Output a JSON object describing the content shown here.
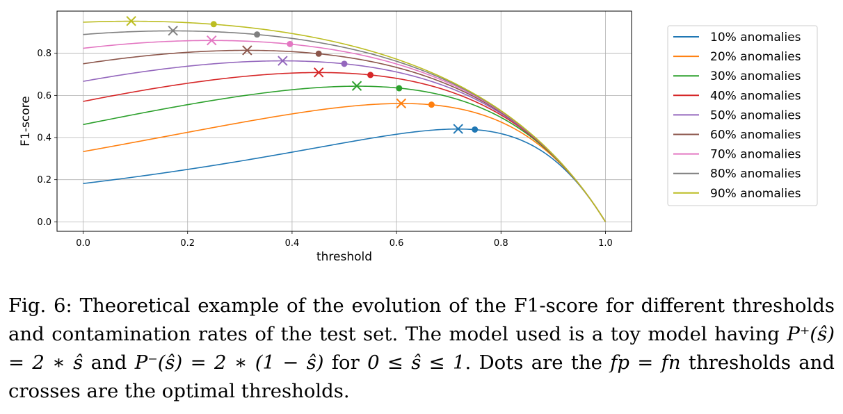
{
  "chart_data": {
    "type": "line",
    "xlabel": "threshold",
    "ylabel": "F1-score",
    "xlim": [
      -0.05,
      1.05
    ],
    "ylim": [
      -0.045,
      1.0
    ],
    "xticks": [
      "0.0",
      "0.2",
      "0.4",
      "0.6",
      "0.8",
      "1.0"
    ],
    "yticks": [
      "0.0",
      "0.2",
      "0.4",
      "0.6",
      "0.8"
    ],
    "xtick_values": [
      0,
      0.2,
      0.4,
      0.6,
      0.8,
      1.0
    ],
    "ytick_values": [
      0,
      0.2,
      0.4,
      0.6,
      0.8
    ],
    "grid": true,
    "legend_position": "outside-right",
    "series": [
      {
        "name": "10% anomalies",
        "color": "#1f77b4",
        "contamination": 0.1,
        "dot": {
          "x": 0.75,
          "y": 0.438
        },
        "cross": {
          "x": 0.718,
          "y": 0.441
        }
      },
      {
        "name": "20% anomalies",
        "color": "#ff7f0e",
        "contamination": 0.2,
        "dot": {
          "x": 0.667,
          "y": 0.556
        },
        "cross": {
          "x": 0.609,
          "y": 0.562
        }
      },
      {
        "name": "30% anomalies",
        "color": "#2ca02c",
        "contamination": 0.3,
        "dot": {
          "x": 0.605,
          "y": 0.634
        },
        "cross": {
          "x": 0.524,
          "y": 0.645
        }
      },
      {
        "name": "40% anomalies",
        "color": "#d62728",
        "contamination": 0.4,
        "dot": {
          "x": 0.55,
          "y": 0.697
        },
        "cross": {
          "x": 0.451,
          "y": 0.709
        }
      },
      {
        "name": "50% anomalies",
        "color": "#9467bd",
        "contamination": 0.5,
        "dot": {
          "x": 0.5,
          "y": 0.75
        },
        "cross": {
          "x": 0.382,
          "y": 0.764
        }
      },
      {
        "name": "60% anomalies",
        "color": "#8c564b",
        "contamination": 0.6,
        "dot": {
          "x": 0.451,
          "y": 0.798
        },
        "cross": {
          "x": 0.314,
          "y": 0.814
        }
      },
      {
        "name": "70% anomalies",
        "color": "#e377c2",
        "contamination": 0.7,
        "dot": {
          "x": 0.396,
          "y": 0.844
        },
        "cross": {
          "x": 0.246,
          "y": 0.861
        }
      },
      {
        "name": "80% anomalies",
        "color": "#7f7f7f",
        "contamination": 0.8,
        "dot": {
          "x": 0.333,
          "y": 0.889
        },
        "cross": {
          "x": 0.172,
          "y": 0.907
        }
      },
      {
        "name": "90% anomalies",
        "color": "#bcbd22",
        "contamination": 0.9,
        "dot": {
          "x": 0.25,
          "y": 0.938
        },
        "cross": {
          "x": 0.092,
          "y": 0.953
        }
      }
    ]
  },
  "caption": {
    "label": "Fig. 6:",
    "text": "Theoretical example of the evolution of the F1-score for different thresholds and contamination rates of the test set. The model used is a toy model having",
    "formula_1": "P⁺(ŝ) = 2 ∗ ŝ",
    "and": "and",
    "formula_2": "P⁻(ŝ) = 2 ∗ (1 − ŝ)",
    "for": "for",
    "range": "0 ≤ ŝ ≤ 1",
    "text_2": ". Dots are the",
    "formula_3": "fp = fn",
    "text_3": "thresholds and crosses are the optimal thresholds."
  }
}
